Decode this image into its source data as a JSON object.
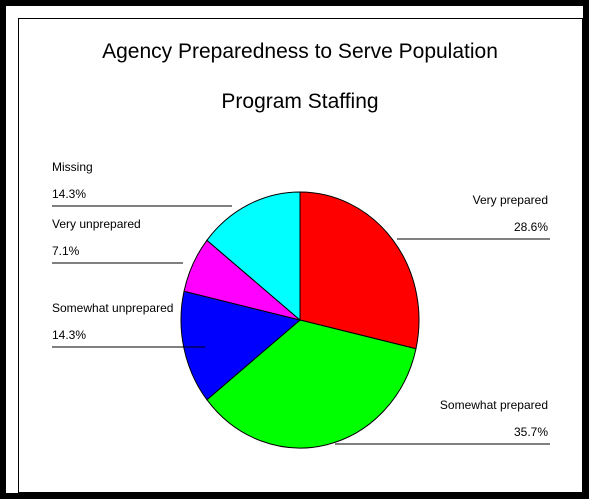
{
  "chart_data": {
    "type": "pie",
    "title": "Agency Preparedness to Serve Population",
    "subtitle": "Program Staffing",
    "slices": [
      {
        "label": "Very prepared",
        "value": 28.6,
        "value_label": "28.6%",
        "color": "#ff0000"
      },
      {
        "label": "Somewhat prepared",
        "value": 35.7,
        "value_label": "35.7%",
        "color": "#00ff00"
      },
      {
        "label": "Somewhat unprepared",
        "value": 14.3,
        "value_label": "14.3%",
        "color": "#0000ff"
      },
      {
        "label": "Very unprepared",
        "value": 7.1,
        "value_label": "7.1%",
        "color": "#ff00ff"
      },
      {
        "label": "Missing",
        "value": 14.3,
        "value_label": "14.3%",
        "color": "#00ffff"
      }
    ],
    "legend": "none"
  }
}
